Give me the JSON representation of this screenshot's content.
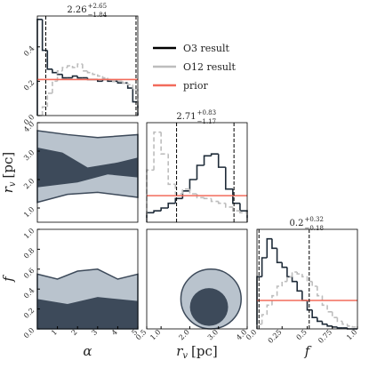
{
  "chart_data": [
    {
      "type": "histogram",
      "title": {
        "median": "2.26",
        "plus": "+2.65",
        "minus": "−1.84"
      },
      "bins": [
        0,
        0.25,
        0.5,
        0.75,
        1,
        1.25,
        1.5,
        1.75,
        2,
        2.25,
        2.5,
        2.75,
        3,
        3.25,
        3.5,
        3.75,
        4,
        4.25,
        4.5,
        4.75,
        5
      ],
      "series": [
        {
          "name": "O3 result",
          "color": "#1e2b38",
          "values": [
            0.56,
            0.38,
            0.27,
            0.25,
            0.24,
            0.22,
            0.22,
            0.23,
            0.22,
            0.22,
            0.21,
            0.21,
            0.2,
            0.21,
            0.2,
            0.2,
            0.19,
            0.19,
            0.16,
            0.08
          ]
        },
        {
          "name": "O12 result",
          "color": "#bdbdbd",
          "values": [
            0,
            0.05,
            0.13,
            0.2,
            0.26,
            0.28,
            0.29,
            0.28,
            0.3,
            0.26,
            0.25,
            0.24,
            0.23,
            0.22,
            0.21,
            0.2,
            0.2,
            0.19,
            0.18,
            0.15
          ]
        }
      ],
      "prior": {
        "name": "prior",
        "color": "#f26b5b",
        "value": 0.21
      },
      "quantiles": [
        0.42,
        4.91
      ],
      "xlim": [
        0,
        5
      ],
      "ylim": [
        0,
        0.58
      ],
      "yticks": [
        {
          "value": 0,
          "label": "0.0"
        },
        0.2,
        0.4
      ]
    },
    {
      "type": "contour",
      "xlim": [
        0,
        5
      ],
      "ylim": [
        0.5,
        4.0
      ],
      "yticks": [
        {
          "value": 1,
          "label": "1.0"
        },
        {
          "value": 2,
          "label": "2.0"
        },
        {
          "value": 3,
          "label": "3.0"
        },
        {
          "value": 4,
          "label": "4.0"
        }
      ],
      "ylabel": [
        "r",
        "v",
        "[pc]"
      ]
    },
    {
      "type": "histogram",
      "title": {
        "median": "2.71",
        "plus": "+0.83",
        "minus": "−1.17"
      },
      "bins": [
        0.5,
        0.75,
        1,
        1.25,
        1.5,
        1.75,
        2,
        2.25,
        2.5,
        2.75,
        3,
        3.25,
        3.5,
        3.75,
        4
      ],
      "series": [
        {
          "name": "O3 result",
          "color": "#1e2b38",
          "values": [
            0.1,
            0.12,
            0.15,
            0.2,
            0.25,
            0.33,
            0.45,
            0.6,
            0.7,
            0.72,
            0.58,
            0.35,
            0.2,
            0.12
          ]
        },
        {
          "name": "O12 result",
          "color": "#bdbdbd",
          "values": [
            0.55,
            0.95,
            0.72,
            0.4,
            0.3,
            0.35,
            0.3,
            0.26,
            0.25,
            0.22,
            0.2,
            0.16,
            0.12,
            0.1
          ]
        }
      ],
      "prior": {
        "name": "prior",
        "color": "#f26b5b",
        "value": 0.28
      },
      "quantiles": [
        1.54,
        3.54
      ],
      "xlim": [
        0.5,
        4.0
      ],
      "ylim": [
        0,
        1.05
      ]
    },
    {
      "type": "contour",
      "xlim": [
        0,
        5
      ],
      "ylim": [
        0,
        1
      ],
      "xticks": [
        1,
        2,
        3,
        4,
        5
      ],
      "yticks": [
        {
          "value": 0,
          "label": "0.0"
        },
        0.2,
        0.4,
        0.6,
        0.8,
        {
          "value": 1,
          "label": "1.0"
        }
      ],
      "xlabel": "α",
      "ylabel": "f"
    },
    {
      "type": "contour",
      "xlim": [
        0.5,
        4.0
      ],
      "ylim": [
        0,
        1
      ],
      "xticks": [
        0.5,
        {
          "value": 1,
          "label": "1.0"
        },
        {
          "value": 2,
          "label": "2.0"
        },
        {
          "value": 3,
          "label": "3.0"
        },
        {
          "value": 4,
          "label": "4.0"
        }
      ],
      "xlabel": [
        "r",
        "v",
        "[pc]"
      ]
    },
    {
      "type": "histogram",
      "title": {
        "median": "0.2",
        "plus": "+0.32",
        "minus": "−0.18"
      },
      "bins": [
        0,
        0.05,
        0.1,
        0.15,
        0.2,
        0.25,
        0.3,
        0.35,
        0.4,
        0.45,
        0.5,
        0.55,
        0.6,
        0.65,
        0.7,
        0.75,
        0.8,
        0.85,
        0.9,
        0.95,
        1
      ],
      "series": [
        {
          "name": "O3 result",
          "color": "#1e2b38",
          "values": [
            0.55,
            0.75,
            0.95,
            0.85,
            0.7,
            0.65,
            0.55,
            0.5,
            0.4,
            0.3,
            0.2,
            0.12,
            0.08,
            0.05,
            0.03,
            0.02,
            0.01,
            0.01,
            0,
            0
          ]
        },
        {
          "name": "O12 result",
          "color": "#bdbdbd",
          "values": [
            0.05,
            0.15,
            0.25,
            0.35,
            0.45,
            0.5,
            0.55,
            0.6,
            0.58,
            0.55,
            0.5,
            0.45,
            0.35,
            0.25,
            0.18,
            0.12,
            0.08,
            0.05,
            0.03,
            0.02
          ]
        }
      ],
      "prior": {
        "name": "prior",
        "color": "#f26b5b",
        "value": 0.3
      },
      "quantiles": [
        0.02,
        0.52
      ],
      "xlim": [
        0,
        1
      ],
      "ylim": [
        0,
        1.05
      ],
      "xticks": [
        {
          "value": 0,
          "label": "0.0"
        },
        0.25,
        0.5,
        0.75,
        {
          "value": 1,
          "label": "1.0"
        }
      ],
      "xlabel": "f"
    }
  ]
}
